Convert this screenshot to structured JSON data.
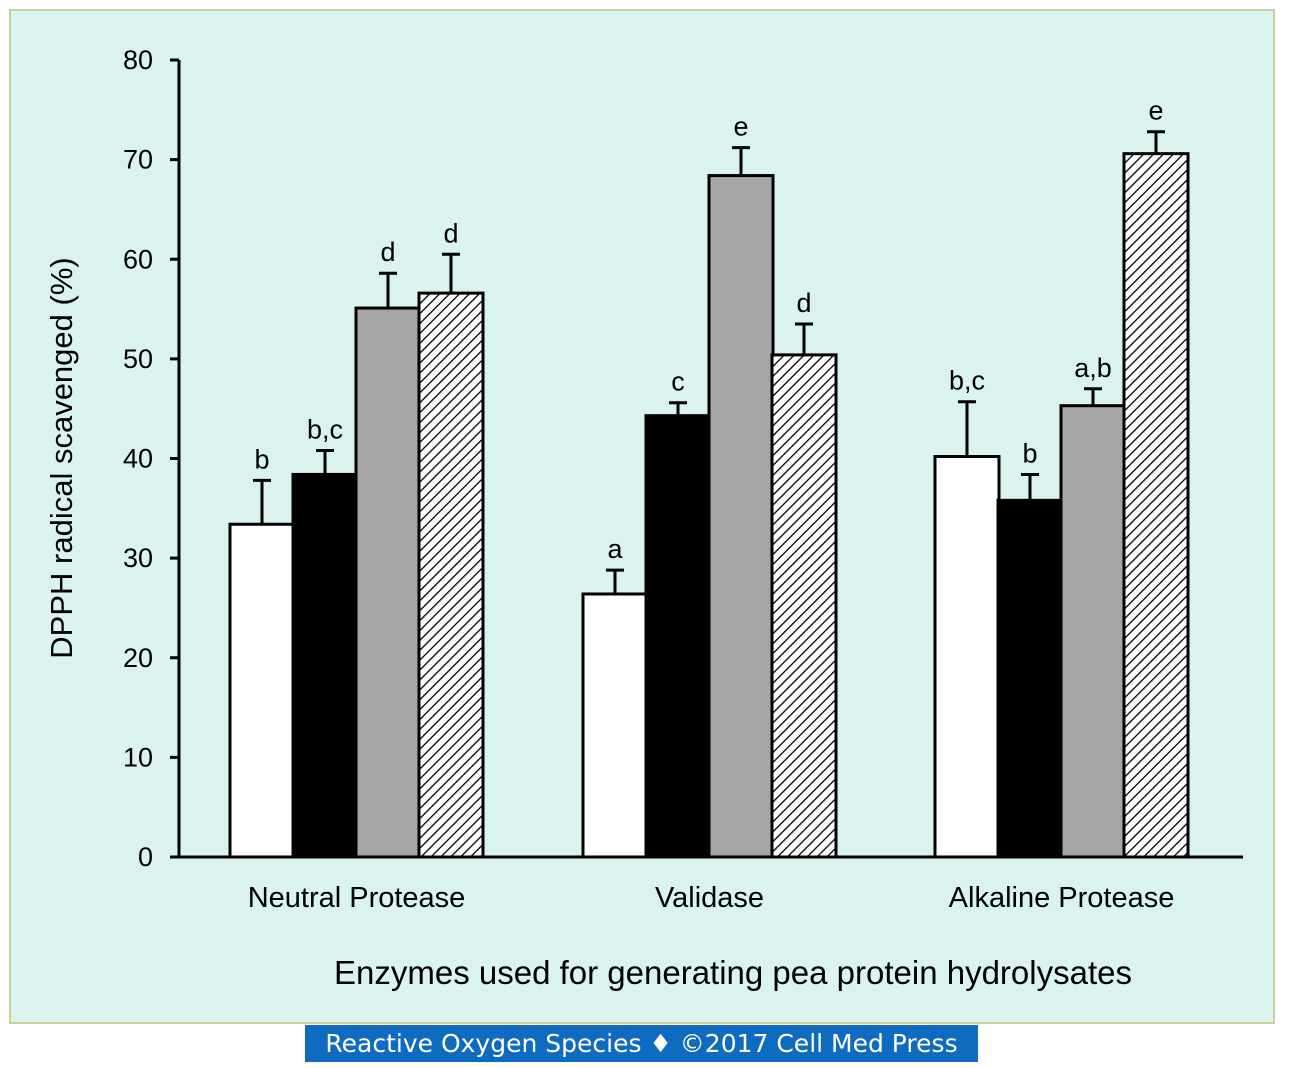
{
  "credit": "Reactive Oxygen Species ♦ ©2017 Cell Med Press",
  "colors": {
    "panel_background": "#daf3ef",
    "panel_border": "#c9cf9a",
    "credit_background": "#0f6bbf",
    "credit_text": "#ffffff"
  },
  "chart_data": {
    "type": "bar",
    "title": "",
    "xlabel": "Enzymes used for generating pea protein hydrolysates",
    "ylabel": "DPPH radical scavenged (%)",
    "ylim": [
      0,
      80
    ],
    "yticks": [
      "0",
      "10",
      "20",
      "30",
      "40",
      "50",
      "60",
      "70",
      "80"
    ],
    "grid": false,
    "legend": "none",
    "categories": [
      "Neutral Protease",
      "Validase",
      "Alkaline Protease"
    ],
    "series": [
      {
        "fill": "white",
        "values": [
          33.4,
          26.4,
          40.2
        ],
        "errors": [
          4.4,
          2.4,
          5.5
        ],
        "letters": [
          "b",
          "a",
          "b,c"
        ]
      },
      {
        "fill": "black",
        "values": [
          38.4,
          44.3,
          35.8
        ],
        "errors": [
          2.4,
          1.3,
          2.6
        ],
        "letters": [
          "b,c",
          "c",
          "b"
        ]
      },
      {
        "fill": "gray",
        "values": [
          55.1,
          68.4,
          45.3
        ],
        "errors": [
          3.5,
          2.8,
          1.7
        ],
        "letters": [
          "d",
          "e",
          "a,b"
        ]
      },
      {
        "fill": "hatched",
        "values": [
          56.6,
          50.4,
          70.6
        ],
        "errors": [
          3.9,
          3.1,
          2.2
        ],
        "letters": [
          "d",
          "d",
          "e"
        ]
      }
    ]
  }
}
